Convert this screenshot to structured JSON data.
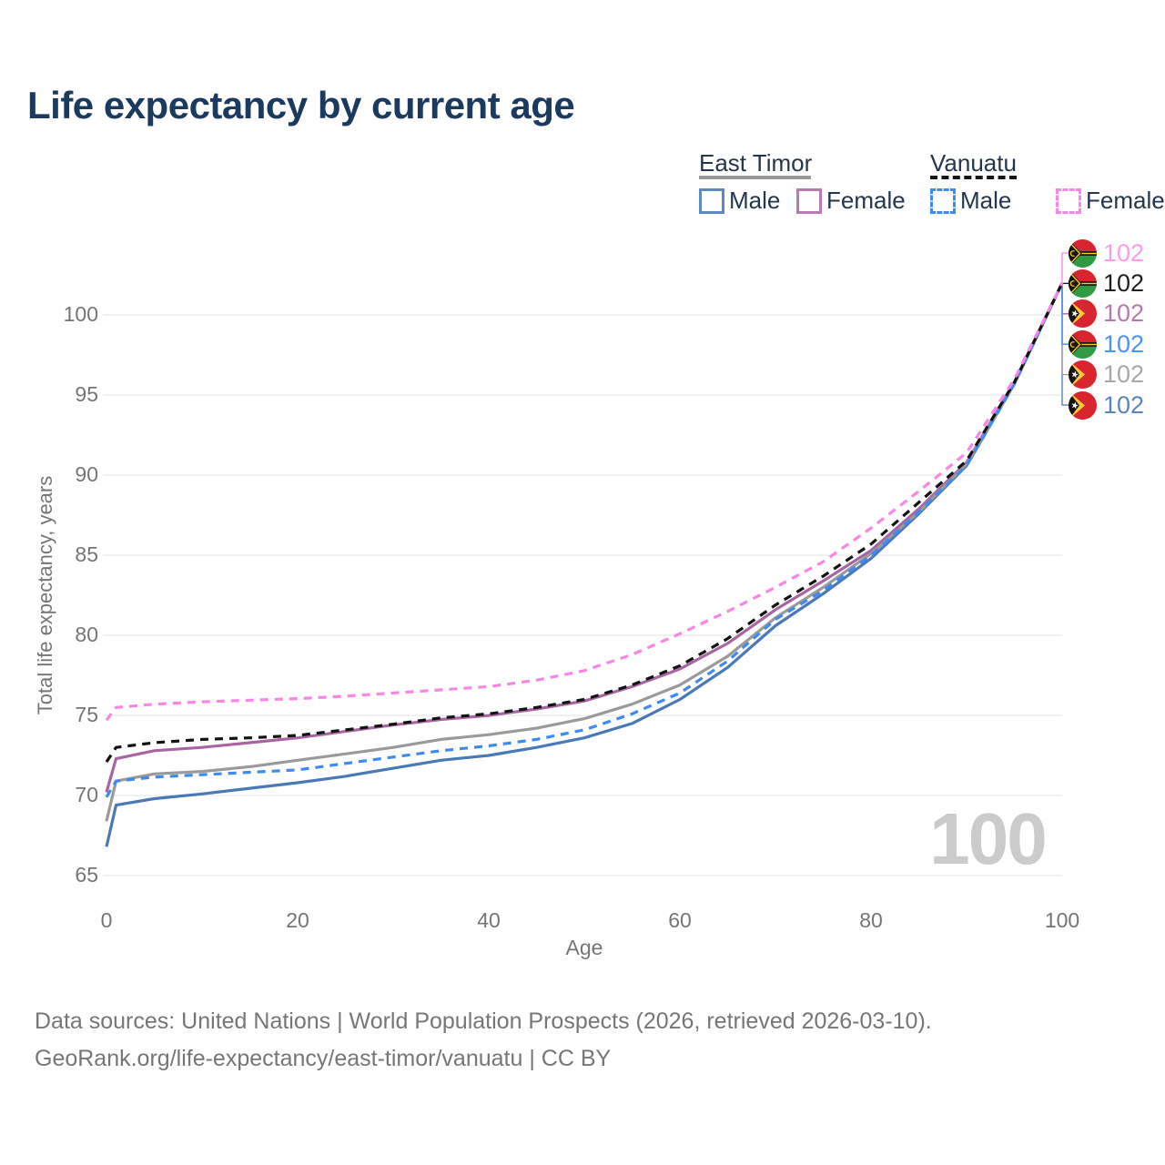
{
  "title": "Life expectancy by current age",
  "legend": {
    "groups": [
      {
        "name": "East Timor",
        "line_style": "solid",
        "underline_color": "#999999",
        "items": [
          {
            "label": "Male",
            "color": "#5b8ac2",
            "dashed": false
          },
          {
            "label": "Female",
            "color": "#b87ab3",
            "dashed": false
          }
        ]
      },
      {
        "name": "Vanuatu",
        "line_style": "dashed",
        "underline_color": "#161616",
        "items": [
          {
            "label": "Male",
            "color": "#3d8bf2",
            "dashed": true
          },
          {
            "label": "Female",
            "color": "#f985e5",
            "dashed": true
          }
        ]
      }
    ]
  },
  "chart_data": {
    "type": "line",
    "title": "Life expectancy by current age",
    "xlabel": "Age",
    "ylabel": "Total life expectancy, years",
    "xlim": [
      0,
      100
    ],
    "ylim": [
      65,
      102
    ],
    "xticks": [
      0,
      20,
      40,
      60,
      80,
      100
    ],
    "yticks": [
      65,
      70,
      75,
      80,
      85,
      90,
      95,
      100
    ],
    "grid": "horizontal",
    "legend_position": "top-right",
    "hover_x_value": "100",
    "x": [
      0,
      1,
      5,
      10,
      15,
      20,
      25,
      30,
      35,
      40,
      45,
      50,
      55,
      60,
      65,
      70,
      75,
      80,
      85,
      90,
      95,
      100
    ],
    "series": [
      {
        "id": "east-timor-male",
        "country": "East Timor",
        "sex": "Male",
        "flag": "east-timor",
        "color": "#4a79b8",
        "label_color": "#5b84c0",
        "dashed": false,
        "end_label": "102",
        "label_row": 5,
        "values": [
          66.8,
          69.4,
          69.8,
          70.1,
          70.45,
          70.8,
          71.2,
          71.7,
          72.2,
          72.5,
          73.0,
          73.6,
          74.5,
          76.0,
          78.0,
          80.6,
          82.6,
          84.8,
          87.6,
          90.6,
          95.7,
          102
        ]
      },
      {
        "id": "east-timor-female",
        "country": "East Timor",
        "sex": "Female",
        "flag": "east-timor",
        "color": "#a965a3",
        "label_color": "#b27cac",
        "dashed": false,
        "end_label": "102",
        "label_row": 2,
        "values": [
          70.2,
          72.3,
          72.8,
          73.0,
          73.3,
          73.6,
          74.0,
          74.4,
          74.75,
          75.0,
          75.4,
          75.9,
          76.8,
          77.9,
          79.5,
          81.6,
          83.4,
          85.3,
          87.9,
          90.8,
          95.8,
          102
        ]
      },
      {
        "id": "east-timor-total",
        "country": "East Timor",
        "sex": "Both",
        "flag": "east-timor",
        "color": "#9a9a9a",
        "label_color": "#a8a8a8",
        "dashed": false,
        "end_label": "102",
        "label_row": 4,
        "values": [
          68.4,
          70.9,
          71.35,
          71.5,
          71.8,
          72.2,
          72.6,
          73.0,
          73.5,
          73.8,
          74.2,
          74.8,
          75.7,
          76.9,
          78.7,
          81.1,
          83.0,
          85.1,
          87.7,
          90.7,
          95.7,
          102
        ]
      },
      {
        "id": "vanuatu-male",
        "country": "Vanuatu",
        "sex": "Male",
        "flag": "vanuatu",
        "color": "#3d8bf2",
        "label_color": "#4b93f5",
        "dashed": true,
        "end_label": "102",
        "label_row": 3,
        "values": [
          69.9,
          70.9,
          71.15,
          71.3,
          71.45,
          71.6,
          72.0,
          72.4,
          72.8,
          73.1,
          73.5,
          74.1,
          75.1,
          76.4,
          78.4,
          81.0,
          82.8,
          85.0,
          87.7,
          90.6,
          95.7,
          102
        ]
      },
      {
        "id": "vanuatu-total",
        "country": "Vanuatu",
        "sex": "Both",
        "flag": "vanuatu",
        "color": "#131313",
        "label_color": "#1f1f1f",
        "dashed": true,
        "end_label": "102",
        "label_row": 1,
        "values": [
          72.1,
          73.0,
          73.3,
          73.5,
          73.6,
          73.75,
          74.1,
          74.45,
          74.85,
          75.1,
          75.5,
          76.0,
          76.9,
          78.1,
          79.8,
          81.9,
          83.7,
          85.7,
          88.3,
          90.9,
          95.8,
          102
        ]
      },
      {
        "id": "vanuatu-female",
        "country": "Vanuatu",
        "sex": "Female",
        "flag": "vanuatu",
        "color": "#f985e5",
        "label_color": "#fb9ce8",
        "dashed": true,
        "end_label": "102",
        "label_row": 0,
        "values": [
          74.7,
          75.5,
          75.7,
          75.85,
          75.95,
          76.05,
          76.2,
          76.4,
          76.6,
          76.8,
          77.2,
          77.8,
          78.8,
          80.1,
          81.5,
          83.0,
          84.6,
          86.7,
          89.0,
          91.4,
          96.0,
          102
        ]
      }
    ]
  },
  "watermark_value": "100",
  "footer": {
    "line1": "Data sources: United Nations | World Population Prospects (2026, retrieved 2026-03-10).",
    "line2": "GeoRank.org/life-expectancy/east-timor/vanuatu | CC BY"
  }
}
